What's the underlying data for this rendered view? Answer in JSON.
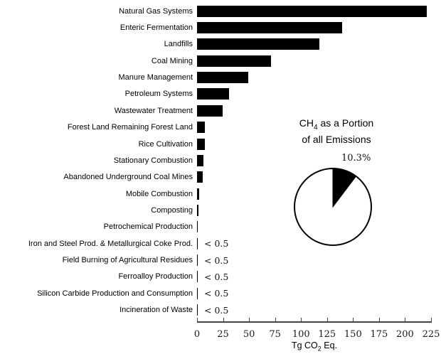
{
  "chart_data": {
    "type": "bar",
    "orientation": "horizontal",
    "title": "",
    "xlabel": "Tg CO2 Eq.",
    "xlabel_parts": {
      "prefix": "Tg CO",
      "sub": "2",
      "suffix": " Eq."
    },
    "xlim": [
      0,
      225
    ],
    "x_ticks": [
      0,
      25,
      50,
      75,
      100,
      125,
      150,
      175,
      200,
      225
    ],
    "grid": "off",
    "bar_color": "#000000",
    "categories": [
      "Natural Gas Systems",
      "Enteric Fermentation",
      "Landfills",
      "Coal Mining",
      "Manure Management",
      "Petroleum Systems",
      "Wastewater Treatment",
      "Forest Land Remaining Forest Land",
      "Rice Cultivation",
      "Stationary Combustion",
      "Abandoned Underground Coal Mines",
      "Mobile Combustion",
      "Composting",
      "Petrochemical Production",
      "Iron and Steel Prod. & Metallurgical Coke Prod.",
      "Field Burning of Agricultural Residues",
      "Ferroalloy Production",
      "Silicon Carbide Production and Consumption",
      "Incineration of Waste"
    ],
    "values": [
      221.2,
      139.8,
      117.5,
      71.0,
      49.5,
      30.9,
      24.5,
      7.8,
      7.3,
      6.2,
      5.5,
      2.0,
      1.7,
      0.8,
      null,
      null,
      null,
      null,
      null
    ],
    "value_notes": [
      "",
      "",
      "",
      "",
      "",
      "",
      "",
      "",
      "",
      "",
      "",
      "",
      "",
      "",
      "< 0.5",
      "< 0.5",
      "< 0.5",
      "< 0.5",
      "< 0.5"
    ],
    "pie": {
      "title_line1_prefix": "CH",
      "title_line1_sub": "4",
      "title_line1_suffix": " as a Portion",
      "title_line2": "of all Emissions",
      "percent": 10.3,
      "percent_label": "10.3%",
      "slice_color": "#000000",
      "fill_color": "#ffffff",
      "outline_color": "#000000"
    }
  }
}
